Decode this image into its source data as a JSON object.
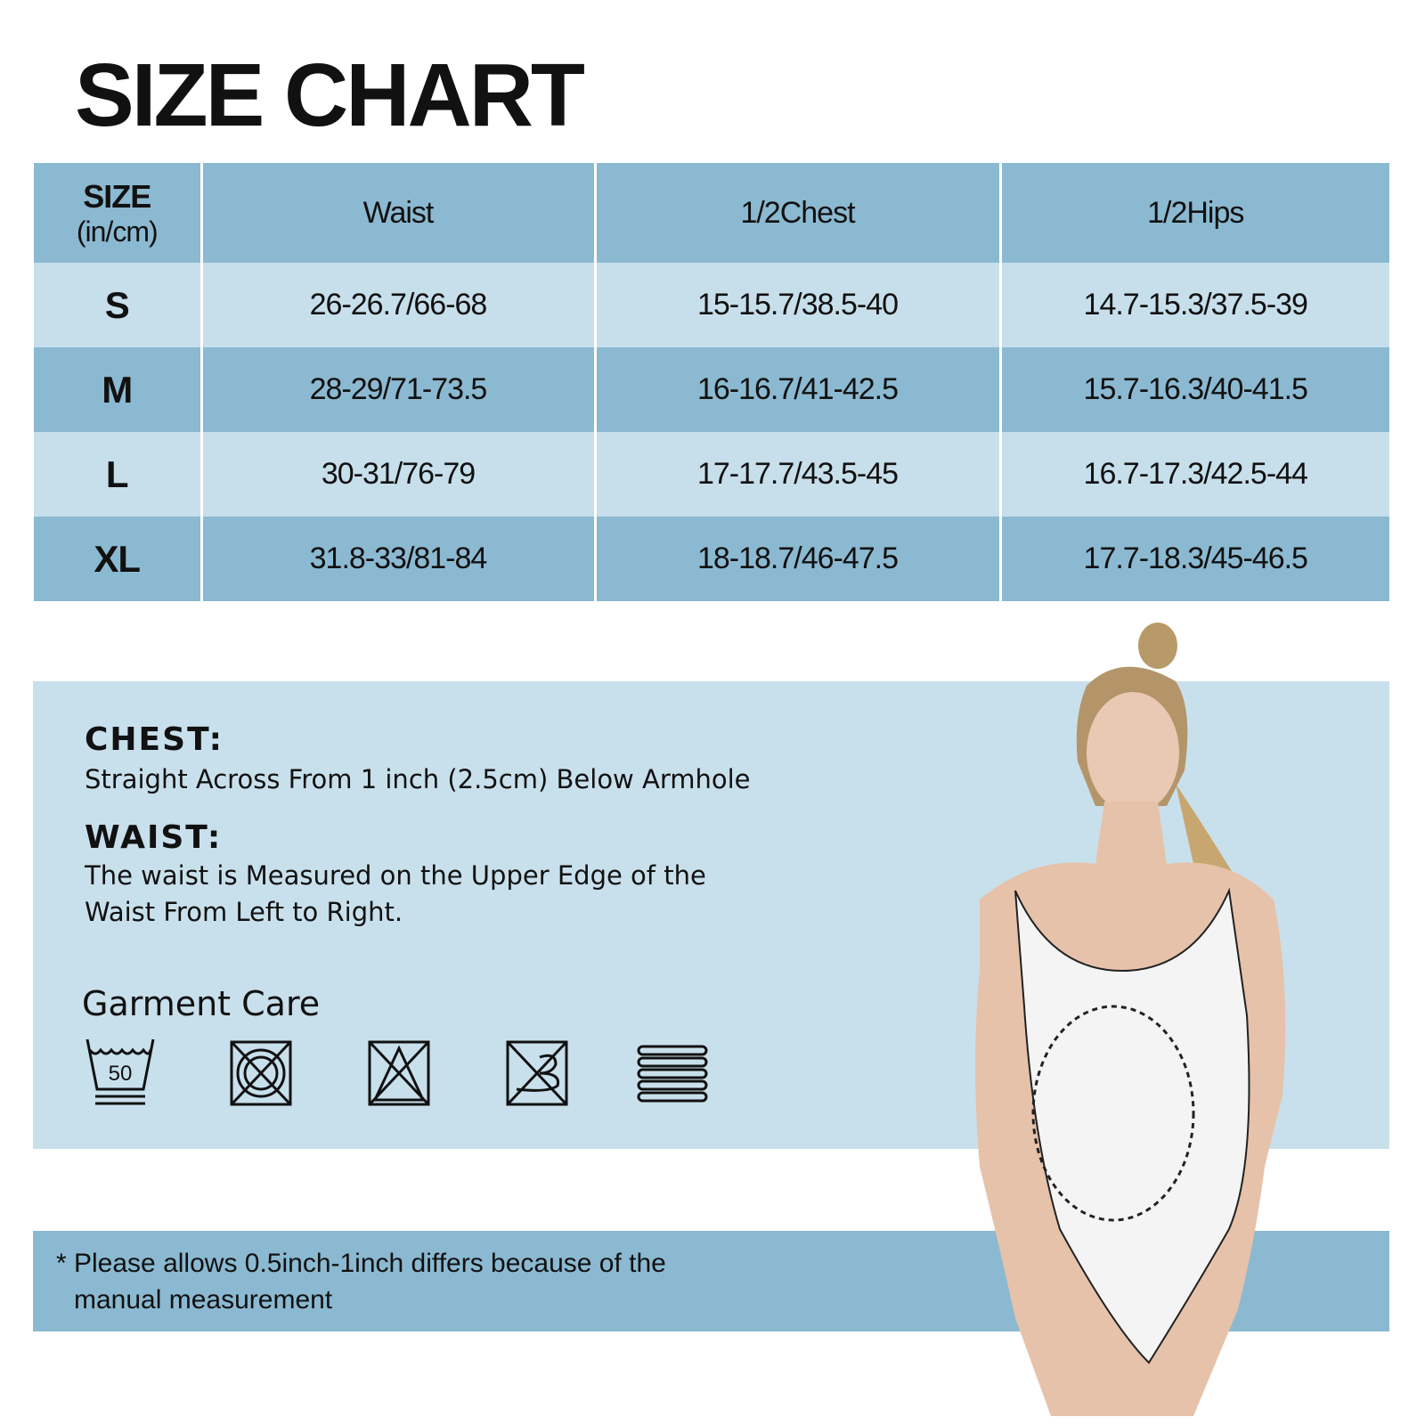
{
  "title": "SIZE CHART",
  "table": {
    "size_header": "SIZE",
    "unit_header": "(in/cm)",
    "columns": [
      "Waist",
      "1/2Chest",
      "1/2Hips"
    ],
    "rows": [
      {
        "size": "S",
        "waist": "26-26.7/66-68",
        "chest": "15-15.7/38.5-40",
        "hips": "14.7-15.3/37.5-39"
      },
      {
        "size": "M",
        "waist": "28-29/71-73.5",
        "chest": "16-16.7/41-42.5",
        "hips": "15.7-16.3/40-41.5"
      },
      {
        "size": "L",
        "waist": "30-31/76-79",
        "chest": "17-17.7/43.5-45",
        "hips": "16.7-17.3/42.5-44"
      },
      {
        "size": "XL",
        "waist": "31.8-33/81-84",
        "chest": "18-18.7/46-47.5",
        "hips": "17.7-18.3/45-46.5"
      }
    ]
  },
  "info": {
    "chest_label": "CHEST:",
    "chest_text": "Straight Across From 1 inch (2.5cm) Below Armhole",
    "waist_label": "WAIST:",
    "waist_text_1": "The waist is Measured on the Upper Edge of the",
    "waist_text_2": "Waist From Left to Right.",
    "care_title": "Garment Care",
    "wash_temp": "50",
    "care_icons": [
      "wash-50-icon",
      "do-not-dryclean-icon",
      "do-not-bleach-icon",
      "do-not-iron-icon",
      "dry-flat-icon"
    ]
  },
  "footer": {
    "line1": "* Please allows 0.5inch-1inch differs because of the",
    "line2": "manual measurement"
  },
  "colors": {
    "dark_row": "#8bb9d1",
    "light_row": "#c7dfeb",
    "panel": "#c8e0ec"
  }
}
